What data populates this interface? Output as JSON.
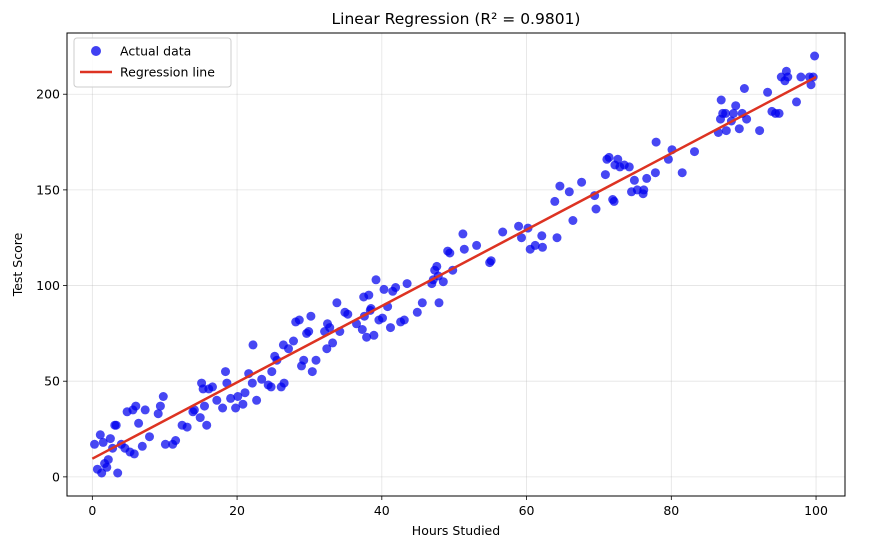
{
  "chart_data": {
    "type": "scatter",
    "title": "Linear Regression (R² = 0.9801)",
    "xlabel": "Hours Studied",
    "ylabel": "Test Score",
    "xlim": [
      -3.5,
      104
    ],
    "ylim": [
      -10,
      232
    ],
    "xticks": [
      0,
      20,
      40,
      60,
      80,
      100
    ],
    "yticks": [
      0,
      50,
      100,
      150,
      200
    ],
    "grid": true,
    "legend": {
      "placement": "top-left",
      "entries": [
        "Actual data",
        "Regression line"
      ]
    },
    "series": [
      {
        "name": "Actual data",
        "kind": "scatter",
        "color": "#0000ee",
        "points": [
          [
            0.3,
            17
          ],
          [
            0.7,
            4
          ],
          [
            1.1,
            22
          ],
          [
            1.3,
            2
          ],
          [
            1.5,
            18
          ],
          [
            1.7,
            7
          ],
          [
            2.0,
            5
          ],
          [
            2.2,
            9
          ],
          [
            2.5,
            20
          ],
          [
            2.8,
            15
          ],
          [
            3.1,
            27
          ],
          [
            3.3,
            27
          ],
          [
            3.5,
            2
          ],
          [
            4.0,
            17
          ],
          [
            4.5,
            15
          ],
          [
            4.8,
            34
          ],
          [
            5.2,
            13
          ],
          [
            5.6,
            35
          ],
          [
            5.8,
            12
          ],
          [
            6.0,
            37
          ],
          [
            6.4,
            28
          ],
          [
            6.9,
            16
          ],
          [
            7.3,
            35
          ],
          [
            7.9,
            21
          ],
          [
            9.1,
            33
          ],
          [
            9.4,
            37
          ],
          [
            9.8,
            42
          ],
          [
            10.1,
            17
          ],
          [
            11.1,
            17
          ],
          [
            11.5,
            19
          ],
          [
            12.4,
            27
          ],
          [
            13.1,
            26
          ],
          [
            13.9,
            34
          ],
          [
            14.1,
            35
          ],
          [
            14.9,
            31
          ],
          [
            15.1,
            49
          ],
          [
            15.3,
            46
          ],
          [
            15.5,
            37
          ],
          [
            15.8,
            27
          ],
          [
            16.1,
            46
          ],
          [
            16.6,
            47
          ],
          [
            17.2,
            40
          ],
          [
            18.0,
            36
          ],
          [
            18.4,
            55
          ],
          [
            18.6,
            49
          ],
          [
            19.1,
            41
          ],
          [
            19.8,
            36
          ],
          [
            20.1,
            42
          ],
          [
            20.8,
            38
          ],
          [
            21.1,
            44
          ],
          [
            21.6,
            54
          ],
          [
            22.1,
            49
          ],
          [
            22.2,
            69
          ],
          [
            22.7,
            40
          ],
          [
            23.4,
            51
          ],
          [
            24.3,
            48
          ],
          [
            24.7,
            47
          ],
          [
            24.8,
            55
          ],
          [
            25.2,
            63
          ],
          [
            25.5,
            61
          ],
          [
            26.1,
            47
          ],
          [
            26.4,
            69
          ],
          [
            26.5,
            49
          ],
          [
            27.1,
            67
          ],
          [
            27.8,
            71
          ],
          [
            28.1,
            81
          ],
          [
            28.6,
            82
          ],
          [
            28.9,
            58
          ],
          [
            29.2,
            61
          ],
          [
            29.6,
            75
          ],
          [
            29.9,
            76
          ],
          [
            30.2,
            84
          ],
          [
            30.4,
            55
          ],
          [
            30.9,
            61
          ],
          [
            32.1,
            76
          ],
          [
            32.5,
            80
          ],
          [
            32.8,
            78
          ],
          [
            32.4,
            67
          ],
          [
            33.2,
            70
          ],
          [
            33.8,
            91
          ],
          [
            34.2,
            76
          ],
          [
            34.9,
            86
          ],
          [
            35.3,
            85
          ],
          [
            36.5,
            80
          ],
          [
            37.3,
            77
          ],
          [
            37.5,
            94
          ],
          [
            37.6,
            84
          ],
          [
            37.9,
            73
          ],
          [
            38.2,
            95
          ],
          [
            38.4,
            87
          ],
          [
            38.5,
            88
          ],
          [
            38.9,
            74
          ],
          [
            39.2,
            103
          ],
          [
            39.6,
            82
          ],
          [
            40.1,
            83
          ],
          [
            40.3,
            98
          ],
          [
            40.8,
            89
          ],
          [
            41.2,
            78
          ],
          [
            41.5,
            97
          ],
          [
            41.9,
            99
          ],
          [
            42.6,
            81
          ],
          [
            43.1,
            82
          ],
          [
            43.5,
            101
          ],
          [
            44.9,
            86
          ],
          [
            45.6,
            91
          ],
          [
            46.9,
            101
          ],
          [
            47.1,
            103
          ],
          [
            47.3,
            108
          ],
          [
            47.8,
            105
          ],
          [
            47.6,
            110
          ],
          [
            47.9,
            91
          ],
          [
            48.5,
            102
          ],
          [
            49.1,
            118
          ],
          [
            49.4,
            117
          ],
          [
            49.8,
            108
          ],
          [
            51.2,
            127
          ],
          [
            51.4,
            119
          ],
          [
            53.1,
            121
          ],
          [
            54.9,
            112
          ],
          [
            55.1,
            113
          ],
          [
            56.7,
            128
          ],
          [
            58.9,
            131
          ],
          [
            59.3,
            125
          ],
          [
            60.2,
            130
          ],
          [
            60.5,
            119
          ],
          [
            61.2,
            121
          ],
          [
            62.1,
            126
          ],
          [
            62.2,
            120
          ],
          [
            63.9,
            144
          ],
          [
            64.2,
            125
          ],
          [
            64.6,
            152
          ],
          [
            65.9,
            149
          ],
          [
            66.4,
            134
          ],
          [
            67.6,
            154
          ],
          [
            69.4,
            147
          ],
          [
            69.6,
            140
          ],
          [
            70.9,
            158
          ],
          [
            71.1,
            166
          ],
          [
            71.4,
            167
          ],
          [
            71.9,
            145
          ],
          [
            72.1,
            144
          ],
          [
            72.2,
            163
          ],
          [
            72.6,
            166
          ],
          [
            72.9,
            162
          ],
          [
            73.5,
            163
          ],
          [
            74.2,
            162
          ],
          [
            74.5,
            149
          ],
          [
            74.9,
            155
          ],
          [
            75.3,
            150
          ],
          [
            76.1,
            148
          ],
          [
            76.2,
            150
          ],
          [
            76.6,
            156
          ],
          [
            77.8,
            159
          ],
          [
            77.9,
            175
          ],
          [
            79.6,
            166
          ],
          [
            80.1,
            171
          ],
          [
            81.5,
            159
          ],
          [
            83.2,
            170
          ],
          [
            86.5,
            180
          ],
          [
            86.8,
            187
          ],
          [
            86.9,
            197
          ],
          [
            87.1,
            190
          ],
          [
            87.5,
            190
          ],
          [
            87.6,
            181
          ],
          [
            88.3,
            186
          ],
          [
            88.6,
            190
          ],
          [
            88.9,
            194
          ],
          [
            89.4,
            182
          ],
          [
            89.8,
            190
          ],
          [
            90.1,
            203
          ],
          [
            90.4,
            187
          ],
          [
            92.2,
            181
          ],
          [
            93.3,
            201
          ],
          [
            93.9,
            191
          ],
          [
            94.4,
            190
          ],
          [
            94.9,
            190
          ],
          [
            95.2,
            209
          ],
          [
            95.7,
            207
          ],
          [
            95.9,
            212
          ],
          [
            96.1,
            209
          ],
          [
            97.3,
            196
          ],
          [
            97.9,
            209
          ],
          [
            99.1,
            209
          ],
          [
            99.3,
            205
          ],
          [
            99.6,
            209
          ],
          [
            99.8,
            220
          ]
        ]
      },
      {
        "name": "Regression line",
        "kind": "line",
        "color": "#dd3322",
        "points": [
          [
            0,
            9.5
          ],
          [
            100,
            209
          ]
        ]
      }
    ]
  }
}
